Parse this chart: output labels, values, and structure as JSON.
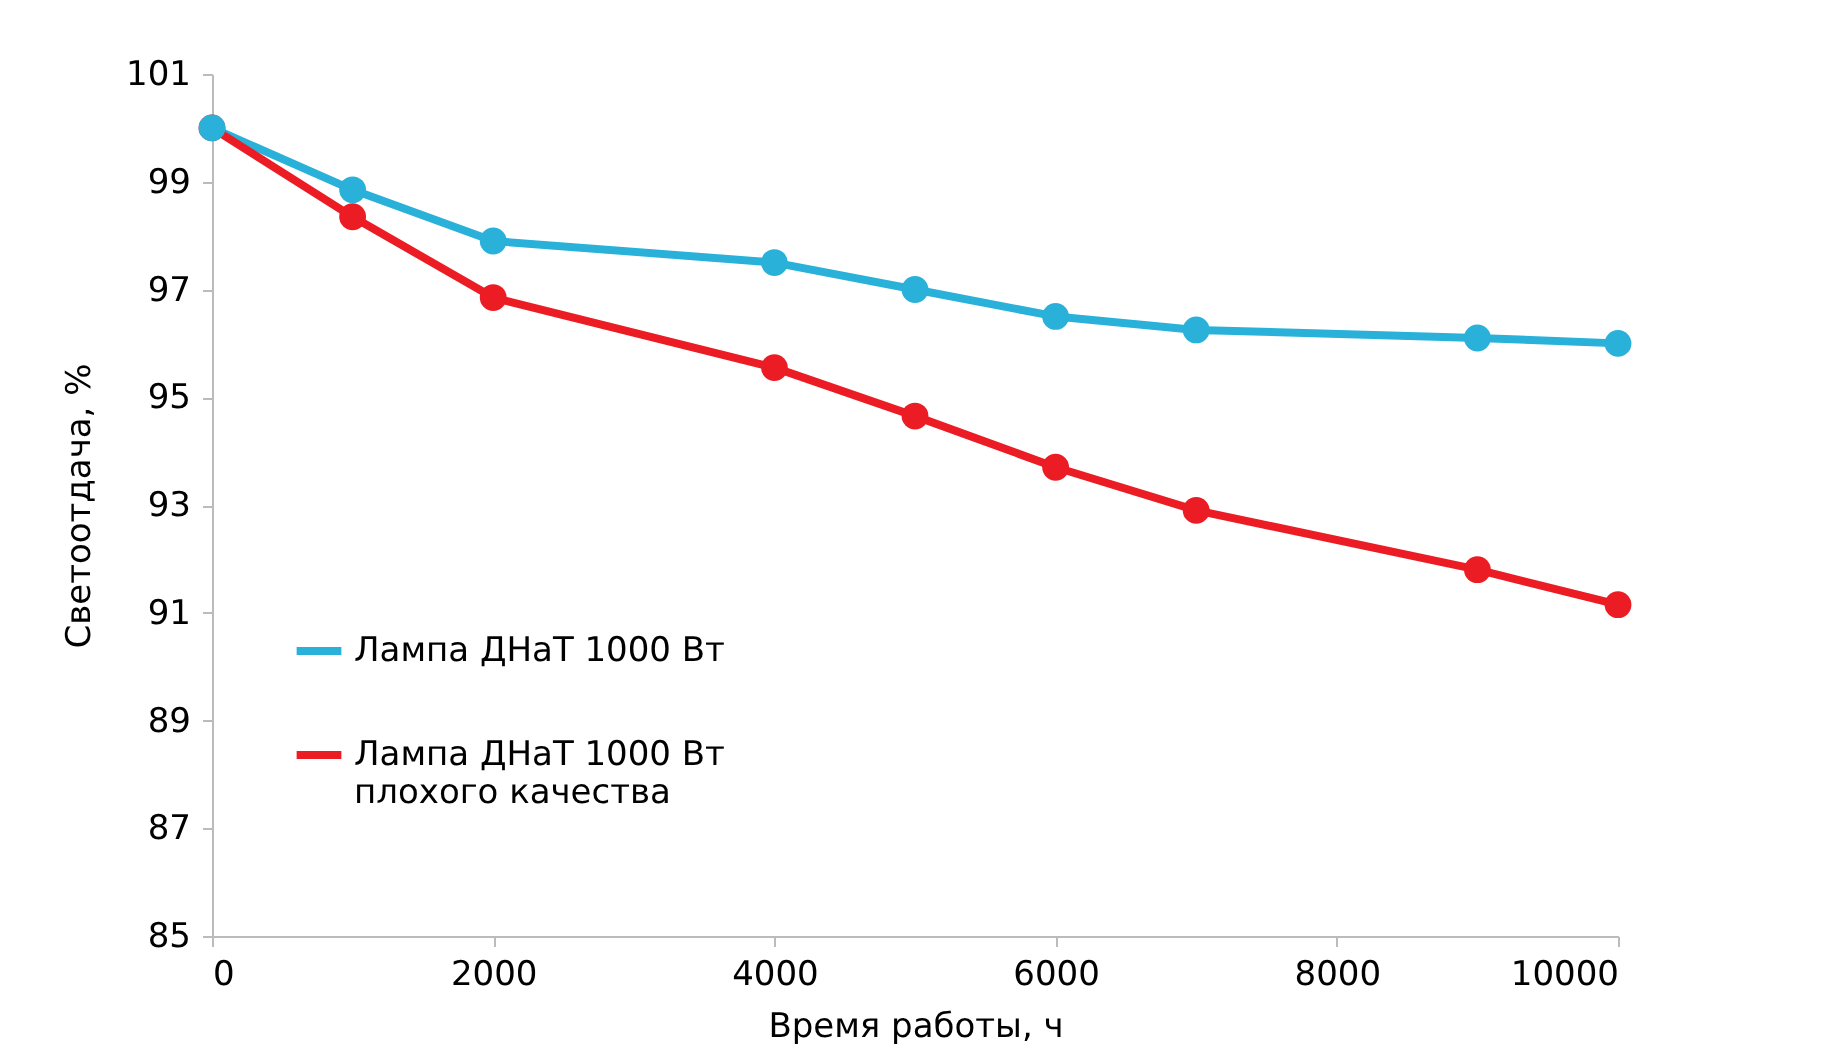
{
  "chart_data": {
    "type": "line",
    "xlabel": "Время работы, ч",
    "ylabel": "Светоотдача, %",
    "x": [
      0,
      1000,
      2000,
      4000,
      5000,
      6000,
      7000,
      9000,
      10000
    ],
    "series": [
      {
        "name": "Лампа ДНаТ 1000 Вт",
        "color": "#29b1d9",
        "values": [
          100,
          98.85,
          97.9,
          97.5,
          97.0,
          96.5,
          96.25,
          96.1,
          96.0
        ]
      },
      {
        "name": "Лампа ДНаТ 1000 Вт плохого качества",
        "color": "#ec1c24",
        "values": [
          100,
          98.35,
          96.85,
          95.55,
          94.65,
          93.7,
          92.9,
          91.8,
          91.15
        ]
      }
    ],
    "xlim": [
      0,
      10000
    ],
    "xticks": [
      0,
      2000,
      4000,
      6000,
      8000,
      10000
    ],
    "ylim": [
      85,
      101
    ],
    "yticks": [
      85,
      87,
      89,
      91,
      93,
      95,
      97,
      99,
      101
    ],
    "grid": false,
    "legend": "left",
    "marker": "circle",
    "line_style": "solid"
  }
}
